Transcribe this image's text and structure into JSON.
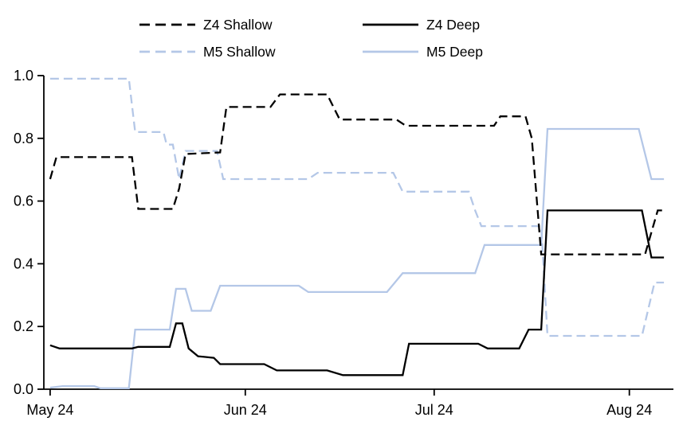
{
  "chart_data": {
    "type": "line",
    "title": "",
    "xlabel": "",
    "ylabel": "",
    "x_unit": "days since start of May 2024",
    "xlim": [
      -1,
      99
    ],
    "ylim": [
      0,
      1.0
    ],
    "grid": false,
    "legend_position": "top",
    "axis_color": "#000000",
    "x_ticks": [
      {
        "pos": 0,
        "label": "May 24"
      },
      {
        "pos": 31,
        "label": "Jun 24"
      },
      {
        "pos": 61,
        "label": "Jul 24"
      },
      {
        "pos": 92,
        "label": "Aug 24"
      }
    ],
    "y_ticks": [
      {
        "pos": 0.0,
        "label": "0.0"
      },
      {
        "pos": 0.2,
        "label": "0.2"
      },
      {
        "pos": 0.4,
        "label": "0.4"
      },
      {
        "pos": 0.6,
        "label": "0.6"
      },
      {
        "pos": 0.8,
        "label": "0.8"
      },
      {
        "pos": 1.0,
        "label": "1.0"
      }
    ],
    "series": [
      {
        "name": "Z4 Shallow",
        "color": "#000000",
        "dash": "dashed",
        "points": [
          [
            0,
            0.67
          ],
          [
            1,
            0.74
          ],
          [
            13,
            0.74
          ],
          [
            14,
            0.575
          ],
          [
            19.5,
            0.575
          ],
          [
            20.5,
            0.64
          ],
          [
            21.5,
            0.75
          ],
          [
            27,
            0.755
          ],
          [
            28,
            0.9
          ],
          [
            35,
            0.9
          ],
          [
            36.5,
            0.94
          ],
          [
            44,
            0.94
          ],
          [
            46,
            0.86
          ],
          [
            55,
            0.86
          ],
          [
            56.5,
            0.84
          ],
          [
            70.5,
            0.84
          ],
          [
            71.5,
            0.87
          ],
          [
            75.5,
            0.87
          ],
          [
            76.5,
            0.8
          ],
          [
            78,
            0.43
          ],
          [
            94.5,
            0.43
          ],
          [
            96.5,
            0.57
          ],
          [
            97.5,
            0.57
          ]
        ]
      },
      {
        "name": "Z4 Deep",
        "color": "#000000",
        "dash": "solid",
        "points": [
          [
            0,
            0.14
          ],
          [
            1.5,
            0.13
          ],
          [
            13,
            0.13
          ],
          [
            14,
            0.135
          ],
          [
            19,
            0.135
          ],
          [
            20,
            0.21
          ],
          [
            21,
            0.21
          ],
          [
            22,
            0.13
          ],
          [
            23.5,
            0.105
          ],
          [
            26,
            0.1
          ],
          [
            27,
            0.08
          ],
          [
            34,
            0.08
          ],
          [
            36,
            0.06
          ],
          [
            44,
            0.06
          ],
          [
            46.5,
            0.045
          ],
          [
            56,
            0.045
          ],
          [
            57,
            0.145
          ],
          [
            68,
            0.145
          ],
          [
            69.5,
            0.13
          ],
          [
            74.5,
            0.13
          ],
          [
            76,
            0.19
          ],
          [
            78,
            0.19
          ],
          [
            79,
            0.57
          ],
          [
            94,
            0.57
          ],
          [
            95.5,
            0.42
          ],
          [
            97.5,
            0.42
          ]
        ]
      },
      {
        "name": "M5 Shallow",
        "color": "#b4c7e7",
        "dash": "dashed",
        "points": [
          [
            0,
            0.99
          ],
          [
            12.5,
            0.99
          ],
          [
            13.5,
            0.82
          ],
          [
            18,
            0.82
          ],
          [
            18.5,
            0.78
          ],
          [
            19.5,
            0.78
          ],
          [
            20.5,
            0.67
          ],
          [
            21.5,
            0.76
          ],
          [
            26.5,
            0.76
          ],
          [
            27.5,
            0.67
          ],
          [
            41,
            0.67
          ],
          [
            42.5,
            0.69
          ],
          [
            54.5,
            0.69
          ],
          [
            56,
            0.63
          ],
          [
            66.5,
            0.63
          ],
          [
            67.5,
            0.57
          ],
          [
            68.5,
            0.52
          ],
          [
            78,
            0.52
          ],
          [
            79,
            0.17
          ],
          [
            94,
            0.17
          ],
          [
            96,
            0.34
          ],
          [
            97.5,
            0.34
          ]
        ]
      },
      {
        "name": "M5 Deep",
        "color": "#b4c7e7",
        "dash": "solid",
        "points": [
          [
            0,
            0.005
          ],
          [
            2,
            0.01
          ],
          [
            7,
            0.01
          ],
          [
            8,
            0.003
          ],
          [
            12.5,
            0.003
          ],
          [
            13.5,
            0.19
          ],
          [
            19,
            0.19
          ],
          [
            20,
            0.32
          ],
          [
            21.5,
            0.32
          ],
          [
            22.5,
            0.25
          ],
          [
            25.5,
            0.25
          ],
          [
            27,
            0.33
          ],
          [
            39.5,
            0.33
          ],
          [
            41,
            0.31
          ],
          [
            53.5,
            0.31
          ],
          [
            56,
            0.37
          ],
          [
            67.5,
            0.37
          ],
          [
            69,
            0.46
          ],
          [
            78,
            0.46
          ],
          [
            79,
            0.83
          ],
          [
            93.5,
            0.83
          ],
          [
            95.5,
            0.67
          ],
          [
            97.5,
            0.67
          ]
        ]
      }
    ]
  }
}
